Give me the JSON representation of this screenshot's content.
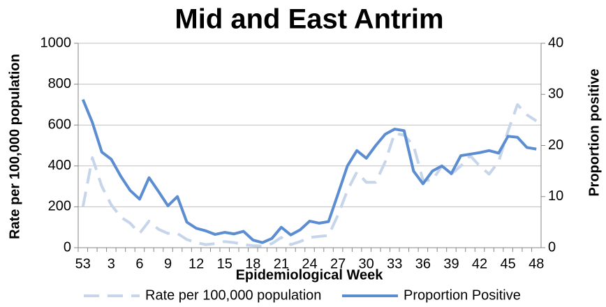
{
  "chart_data": {
    "type": "line",
    "title": "Mid and East Antrim",
    "x_label": "Epidemiological Week",
    "y_label": "Rate per 100,000 population",
    "y2_label": "Proportion positive",
    "categories": [
      53,
      null,
      null,
      3,
      null,
      null,
      6,
      null,
      null,
      9,
      null,
      null,
      12,
      null,
      null,
      15,
      null,
      null,
      18,
      null,
      null,
      21,
      null,
      null,
      24,
      null,
      null,
      27,
      null,
      null,
      30,
      null,
      null,
      33,
      null,
      null,
      36,
      null,
      null,
      39,
      null,
      null,
      42,
      null,
      null,
      45,
      null,
      null,
      48
    ],
    "series": [
      {
        "name": "Rate per 100,000 population",
        "color": "#c6d5ea",
        "dashed": true,
        "values": [
          200,
          440,
          300,
          210,
          150,
          120,
          70,
          130,
          90,
          70,
          70,
          40,
          25,
          15,
          20,
          30,
          25,
          15,
          10,
          8,
          20,
          50,
          15,
          30,
          50,
          55,
          60,
          160,
          280,
          370,
          320,
          320,
          420,
          560,
          550,
          500,
          330,
          330,
          400,
          360,
          400,
          450,
          400,
          360,
          420,
          570,
          700,
          650,
          620
        ]
      },
      {
        "name": "Proportion Positive",
        "color": "#5b8dd0",
        "dashed": false,
        "axis": "y2",
        "values": [
          29,
          24.5,
          18.7,
          17.3,
          14,
          11.2,
          9.5,
          13.7,
          11,
          8.2,
          10,
          5,
          3.8,
          3.3,
          2.6,
          3,
          2.7,
          3.2,
          1.5,
          1,
          1.8,
          4,
          2.5,
          3.5,
          5.2,
          4.8,
          5.1,
          10.5,
          16,
          19,
          17.5,
          20,
          22.2,
          23.2,
          22.9,
          15,
          12.5,
          15,
          16,
          14.5,
          18,
          18.3,
          18.6,
          19,
          18.5,
          21.8,
          21.6,
          19.6,
          19.3
        ]
      }
    ],
    "ylim": [
      0,
      1000
    ],
    "yticks": [
      0,
      200,
      400,
      600,
      800,
      1000
    ],
    "y2lim": [
      0,
      40
    ],
    "y2ticks": [
      0,
      10,
      20,
      30,
      40
    ],
    "grid": true
  }
}
